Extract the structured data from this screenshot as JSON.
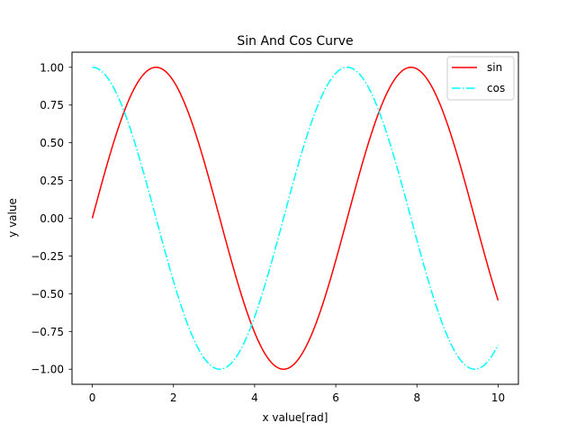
{
  "chart_data": {
    "type": "line",
    "title": "Sin And Cos Curve",
    "xlabel": "x value[rad]",
    "ylabel": "y value",
    "xlim": [
      -0.5,
      10.5
    ],
    "ylim": [
      -1.1,
      1.1
    ],
    "x_range": [
      0,
      10
    ],
    "xticks": [
      0,
      2,
      4,
      6,
      8,
      10
    ],
    "xtick_labels": [
      "0",
      "2",
      "4",
      "6",
      "8",
      "10"
    ],
    "yticks": [
      1.0,
      0.75,
      0.5,
      0.25,
      0.0,
      -0.25,
      -0.5,
      -0.75,
      -1.0
    ],
    "ytick_labels": [
      "1.00",
      "0.75",
      "0.50",
      "0.25",
      "0.00",
      "−0.25",
      "−0.50",
      "−0.75",
      "−1.00"
    ],
    "grid": false,
    "legend_position": "top-right",
    "series": [
      {
        "name": "sin",
        "function": "sin(x)",
        "color": "#ff0000",
        "style": "solid"
      },
      {
        "name": "cos",
        "function": "cos(x)",
        "color": "#00ffff",
        "style": "dashdot"
      }
    ]
  }
}
